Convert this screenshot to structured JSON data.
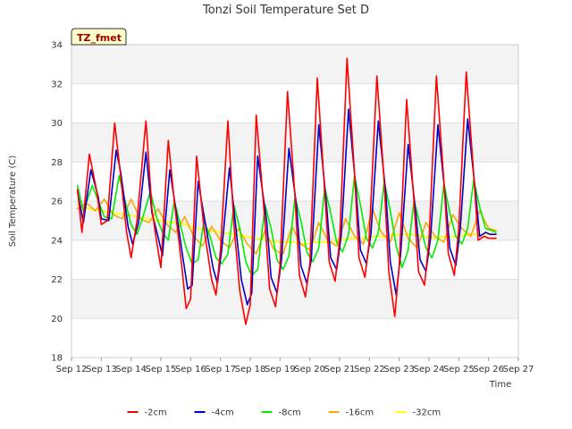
{
  "chart_data": {
    "type": "line",
    "title": "Tonzi Soil Temperature Set D",
    "xlabel": "Time",
    "ylabel": "Soil Temperature (C)",
    "ylim": [
      18,
      34
    ],
    "yticks": [
      18,
      20,
      22,
      24,
      26,
      28,
      30,
      32,
      34
    ],
    "xlim": [
      12,
      27
    ],
    "xticks": [
      {
        "value": 12,
        "label": "Sep 12"
      },
      {
        "value": 13,
        "label": "Sep 13"
      },
      {
        "value": 14,
        "label": "Sep 14"
      },
      {
        "value": 15,
        "label": "Sep 15"
      },
      {
        "value": 16,
        "label": "Sep 16"
      },
      {
        "value": 17,
        "label": "Sep 17"
      },
      {
        "value": 18,
        "label": "Sep 18"
      },
      {
        "value": 19,
        "label": "Sep 19"
      },
      {
        "value": 20,
        "label": "Sep 20"
      },
      {
        "value": 21,
        "label": "Sep 21"
      },
      {
        "value": 22,
        "label": "Sep 22"
      },
      {
        "value": 23,
        "label": "Sep 23"
      },
      {
        "value": 24,
        "label": "Sep 24"
      },
      {
        "value": 25,
        "label": "Sep 25"
      },
      {
        "value": 26,
        "label": "Sep 26"
      },
      {
        "value": 27,
        "label": "Sep 27"
      }
    ],
    "tag_label": "TZ_fmet",
    "legend_position": "bottom",
    "grid": true,
    "series": [
      {
        "name": "-2cm",
        "color": "#ff0000",
        "x": [
          12.2,
          12.35,
          12.6,
          12.85,
          13.0,
          13.2,
          13.45,
          13.6,
          13.85,
          14.0,
          14.2,
          14.5,
          14.7,
          14.85,
          15.0,
          15.25,
          15.45,
          15.7,
          15.85,
          16.0,
          16.2,
          16.45,
          16.7,
          16.85,
          17.0,
          17.25,
          17.45,
          17.65,
          17.85,
          18.0,
          18.2,
          18.5,
          18.65,
          18.85,
          19.0,
          19.25,
          19.5,
          19.65,
          19.85,
          20.0,
          20.25,
          20.5,
          20.65,
          20.85,
          21.0,
          21.25,
          21.5,
          21.65,
          21.85,
          22.0,
          21.99,
          22.25,
          22.5,
          22.65,
          22.85,
          23.0,
          23.25,
          23.5,
          23.65,
          23.85,
          24.0,
          24.25,
          24.5,
          24.65,
          24.85,
          25.0,
          25.25,
          25.5,
          25.65,
          25.85,
          26.0,
          26.25
        ],
        "y": [
          26.6,
          24.4,
          28.4,
          26.5,
          24.8,
          25.0,
          30.0,
          28.0,
          24.4,
          23.1,
          25.0,
          30.1,
          25.6,
          24.0,
          22.6,
          29.1,
          26.0,
          22.7,
          20.5,
          21.0,
          28.3,
          24.6,
          22.0,
          21.2,
          23.5,
          30.1,
          24.8,
          21.4,
          19.7,
          20.7,
          30.4,
          24.8,
          21.5,
          20.6,
          22.7,
          31.6,
          26.3,
          22.2,
          21.1,
          22.8,
          32.3,
          26.5,
          22.9,
          21.9,
          24.0,
          33.3,
          27.4,
          23.1,
          22.1,
          24.0,
          24.0,
          32.4,
          26.9,
          22.4,
          20.1,
          22.7,
          31.2,
          25.9,
          22.4,
          21.7,
          24.0,
          32.4,
          27.0,
          23.3,
          22.2,
          24.6,
          32.6,
          27.4,
          24.0,
          24.2,
          24.1,
          24.1
        ]
      },
      {
        "name": "-4cm",
        "color": "#0000cc",
        "x": [
          12.2,
          12.4,
          12.65,
          12.9,
          13.0,
          13.25,
          13.5,
          13.65,
          13.9,
          14.05,
          14.25,
          14.5,
          14.7,
          14.9,
          15.05,
          15.3,
          15.5,
          15.75,
          15.9,
          16.05,
          16.25,
          16.5,
          16.75,
          16.9,
          17.05,
          17.3,
          17.5,
          17.7,
          17.9,
          18.05,
          18.25,
          18.55,
          18.7,
          18.9,
          19.05,
          19.3,
          19.55,
          19.7,
          19.9,
          20.05,
          20.3,
          20.55,
          20.7,
          20.9,
          21.05,
          21.3,
          21.55,
          21.7,
          21.9,
          22.05,
          22.3,
          22.55,
          22.7,
          22.9,
          23.05,
          23.3,
          23.55,
          23.7,
          23.9,
          24.05,
          24.3,
          24.55,
          24.7,
          24.9,
          25.05,
          25.3,
          25.55,
          25.7,
          25.9,
          26.05,
          26.25
        ],
        "y": [
          26.5,
          24.9,
          27.6,
          26.2,
          25.1,
          25.0,
          28.6,
          27.5,
          24.7,
          23.8,
          24.9,
          28.5,
          25.4,
          24.2,
          23.2,
          27.6,
          25.6,
          23.0,
          21.5,
          21.7,
          27.0,
          24.8,
          22.6,
          21.8,
          23.6,
          27.7,
          24.9,
          22.0,
          20.7,
          21.3,
          28.3,
          25.0,
          22.1,
          21.3,
          23.0,
          28.7,
          25.8,
          22.7,
          21.8,
          23.0,
          29.9,
          26.0,
          23.1,
          22.5,
          24.2,
          30.7,
          26.6,
          23.5,
          22.8,
          24.3,
          30.1,
          26.4,
          22.9,
          21.2,
          23.3,
          28.9,
          25.5,
          23.0,
          22.4,
          24.1,
          29.9,
          26.2,
          23.6,
          22.7,
          24.6,
          30.2,
          26.6,
          24.2,
          24.4,
          24.3,
          24.3
        ]
      },
      {
        "name": "-8cm",
        "color": "#00ee00",
        "x": [
          12.2,
          12.4,
          12.7,
          12.95,
          13.1,
          13.35,
          13.6,
          13.8,
          14.0,
          14.2,
          14.4,
          14.65,
          14.85,
          15.05,
          15.25,
          15.45,
          15.65,
          15.85,
          16.05,
          16.25,
          16.45,
          16.65,
          16.85,
          17.05,
          17.25,
          17.45,
          17.65,
          17.85,
          18.05,
          18.25,
          18.5,
          18.7,
          18.9,
          19.1,
          19.3,
          19.5,
          19.7,
          19.9,
          20.1,
          20.3,
          20.5,
          20.7,
          20.9,
          21.1,
          21.3,
          21.5,
          21.7,
          21.9,
          22.1,
          22.3,
          22.5,
          22.7,
          22.9,
          23.1,
          23.3,
          23.5,
          23.7,
          23.9,
          24.1,
          24.3,
          24.5,
          24.7,
          24.9,
          25.1,
          25.3,
          25.5,
          25.7,
          25.9,
          26.1,
          26.25
        ],
        "y": [
          26.8,
          25.5,
          26.8,
          25.8,
          25.2,
          25.1,
          27.3,
          26.0,
          24.8,
          24.3,
          25.2,
          26.5,
          25.2,
          24.4,
          24.0,
          26.0,
          24.8,
          23.6,
          22.8,
          23.0,
          25.0,
          24.2,
          23.1,
          22.8,
          23.3,
          25.8,
          24.6,
          22.9,
          22.2,
          22.5,
          25.8,
          24.6,
          23.0,
          22.5,
          23.2,
          26.2,
          25.0,
          23.4,
          22.9,
          23.6,
          26.7,
          25.4,
          23.9,
          23.4,
          24.3,
          27.3,
          25.8,
          24.1,
          23.6,
          24.4,
          27.0,
          25.5,
          23.7,
          22.6,
          23.5,
          26.0,
          24.8,
          23.6,
          23.1,
          24.0,
          26.9,
          25.4,
          24.2,
          23.8,
          24.6,
          27.1,
          25.7,
          24.6,
          24.5,
          24.4
        ]
      },
      {
        "name": "-16cm",
        "color": "#ffa500",
        "x": [
          12.2,
          12.5,
          12.8,
          13.1,
          13.4,
          13.7,
          14.0,
          14.3,
          14.6,
          14.9,
          15.2,
          15.5,
          15.8,
          16.1,
          16.4,
          16.7,
          17.0,
          17.3,
          17.6,
          17.9,
          18.2,
          18.5,
          18.8,
          19.1,
          19.4,
          19.7,
          20.0,
          20.3,
          20.6,
          20.9,
          21.2,
          21.5,
          21.8,
          22.1,
          22.4,
          22.7,
          23.0,
          23.3,
          23.6,
          23.9,
          24.2,
          24.5,
          24.8,
          25.1,
          25.4,
          25.7,
          26.0,
          26.25
        ],
        "y": [
          25.6,
          25.9,
          25.5,
          26.1,
          25.3,
          25.1,
          26.1,
          25.1,
          24.9,
          25.6,
          24.8,
          24.4,
          25.2,
          24.2,
          23.7,
          24.7,
          24.0,
          23.6,
          24.6,
          23.8,
          23.3,
          24.5,
          23.5,
          23.3,
          24.7,
          23.8,
          23.5,
          24.9,
          24.0,
          23.7,
          25.1,
          24.2,
          23.8,
          25.6,
          24.4,
          23.9,
          25.4,
          24.1,
          23.6,
          24.9,
          24.2,
          23.9,
          25.3,
          24.6,
          24.2,
          25.5,
          24.6,
          24.5
        ]
      },
      {
        "name": "-32cm",
        "color": "#ffff00",
        "x": [
          12.2,
          12.6,
          13.0,
          13.4,
          13.8,
          14.2,
          14.6,
          15.0,
          15.4,
          15.8,
          16.2,
          16.6,
          17.0,
          17.4,
          17.8,
          18.2,
          18.6,
          19.0,
          19.4,
          19.8,
          20.2,
          20.6,
          21.0,
          21.4,
          21.8,
          22.2,
          22.6,
          23.0,
          23.4,
          23.8,
          24.2,
          24.6,
          25.0,
          25.4,
          25.8,
          26.25
        ],
        "y": [
          25.8,
          25.6,
          25.5,
          25.4,
          25.3,
          25.2,
          25.1,
          25.0,
          24.9,
          24.8,
          24.6,
          24.5,
          24.4,
          24.3,
          24.2,
          24.1,
          24.0,
          23.9,
          23.9,
          23.8,
          23.9,
          23.9,
          24.0,
          24.1,
          24.1,
          24.2,
          24.2,
          24.3,
          24.3,
          24.2,
          24.1,
          24.2,
          24.2,
          24.3,
          24.3,
          24.3
        ]
      }
    ]
  }
}
